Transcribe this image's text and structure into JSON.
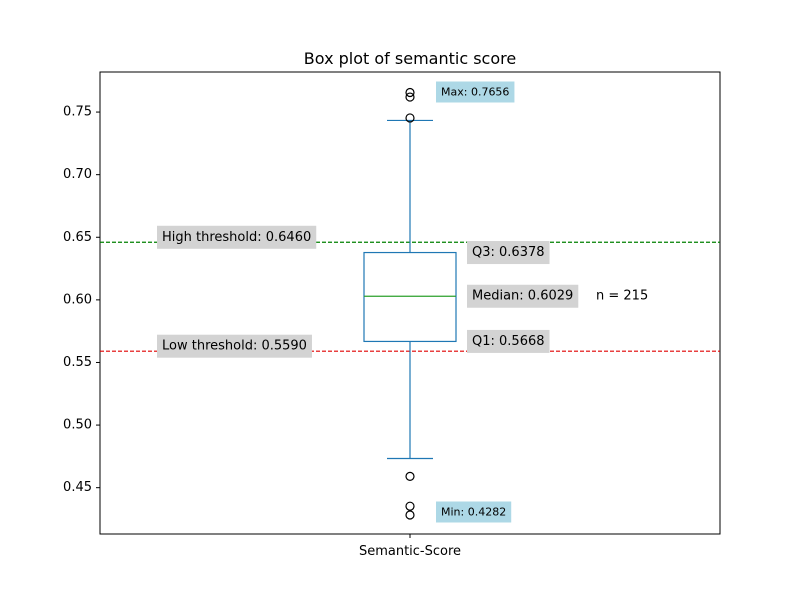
{
  "chart_data": {
    "type": "box",
    "title": "Box plot of semantic score",
    "xlabel": "",
    "ylabel": "",
    "categories": [
      "Semantic-Score"
    ],
    "ylim": [
      0.413,
      0.782
    ],
    "yticks": [
      0.45,
      0.5,
      0.55,
      0.6,
      0.65,
      0.7,
      0.75
    ],
    "ytick_labels": [
      "0.45",
      "0.50",
      "0.55",
      "0.60",
      "0.65",
      "0.70",
      "0.75"
    ],
    "grid": false,
    "box": {
      "q1": 0.5668,
      "median": 0.6029,
      "q3": 0.6378,
      "whisker_low": 0.4733,
      "whisker_high": 0.7433
    },
    "outliers": [
      0.7656,
      0.762,
      0.7453,
      0.459,
      0.4352,
      0.4282
    ],
    "thresholds": [
      {
        "label": "High threshold: 0.6460",
        "value": 0.646,
        "color": "#008000"
      },
      {
        "label": "Low threshold: 0.5590",
        "value": 0.559,
        "color": "#e00000"
      }
    ],
    "annotations": {
      "max": {
        "label": "Max: 0.7656",
        "value": 0.7656
      },
      "min": {
        "label": "Min: 0.4282",
        "value": 0.4282
      },
      "q3": "Q3: 0.6378",
      "median": "Median: 0.6029",
      "q1": "Q1: 0.5668",
      "n": "n = 215"
    },
    "colors": {
      "box": "#1f77b4",
      "median": "#2ca02c",
      "label_gray": "#d3d3d3",
      "label_blue": "#add8e6"
    }
  }
}
